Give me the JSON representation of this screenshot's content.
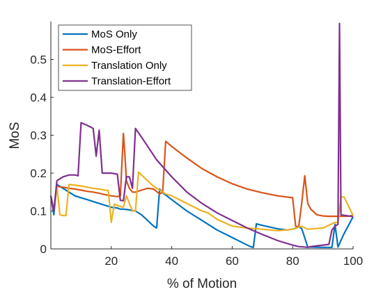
{
  "chart_data": {
    "type": "line",
    "xlabel": "% of Motion",
    "ylabel": "MoS",
    "xlim": [
      0,
      100
    ],
    "ylim": [
      0,
      0.6
    ],
    "xticks": [
      20,
      40,
      60,
      80,
      100
    ],
    "yticks": [
      0,
      0.1,
      0.2,
      0.3,
      0.4,
      0.5
    ],
    "xtick_labels": [
      "20",
      "40",
      "60",
      "80",
      "100"
    ],
    "ytick_labels": [
      "0",
      "0.1",
      "0.2",
      "0.3",
      "0.4",
      "0.5"
    ],
    "grid": false,
    "legend_position": "top-left",
    "series": [
      {
        "name": "MoS Only",
        "color": "#0072BD",
        "x": [
          0,
          1,
          2,
          4,
          6,
          8,
          10,
          12,
          14,
          16,
          18,
          20,
          22,
          23,
          24,
          26,
          28,
          30,
          32,
          34,
          35,
          36,
          37,
          40,
          45,
          50,
          55,
          60,
          63,
          66,
          67,
          68,
          70,
          75,
          78,
          80,
          82,
          83,
          85,
          90,
          93,
          94,
          95,
          97,
          99,
          100
        ],
        "y": [
          0.14,
          0.09,
          0.17,
          0.16,
          0.15,
          0.14,
          0.135,
          0.13,
          0.125,
          0.12,
          0.115,
          0.11,
          0.108,
          0.105,
          0.105,
          0.103,
          0.1,
          0.09,
          0.075,
          0.06,
          0.055,
          0.158,
          0.148,
          0.13,
          0.1,
          0.075,
          0.05,
          0.03,
          0.018,
          0.006,
          0.004,
          0.066,
          0.062,
          0.053,
          0.05,
          0.052,
          0.058,
          0.054,
          0.005,
          0.004,
          0.004,
          0.065,
          0.005,
          0.04,
          0.07,
          0.085
        ]
      },
      {
        "name": "MoS-Effort",
        "color": "#D95319",
        "x": [
          0,
          1,
          2,
          4,
          6,
          8,
          10,
          12,
          14,
          16,
          18,
          20,
          22,
          23,
          24,
          24.5,
          25,
          26,
          27,
          28,
          30,
          32,
          34,
          36,
          37,
          38,
          40,
          45,
          50,
          55,
          60,
          65,
          70,
          75,
          80,
          81,
          82,
          83,
          84,
          85,
          86,
          88,
          90,
          92,
          94,
          96,
          98,
          100
        ],
        "y": [
          0.14,
          0.1,
          0.165,
          0.163,
          0.16,
          0.158,
          0.155,
          0.152,
          0.15,
          0.147,
          0.143,
          0.14,
          0.138,
          0.14,
          0.305,
          0.25,
          0.18,
          0.16,
          0.15,
          0.15,
          0.155,
          0.16,
          0.158,
          0.145,
          0.15,
          0.284,
          0.27,
          0.24,
          0.212,
          0.19,
          0.172,
          0.158,
          0.148,
          0.14,
          0.135,
          0.06,
          0.058,
          0.12,
          0.193,
          0.12,
          0.105,
          0.09,
          0.087,
          0.086,
          0.086,
          0.086,
          0.086,
          0.088
        ]
      },
      {
        "name": "Translation Only",
        "color": "#EDB120",
        "x": [
          0,
          1,
          2,
          3,
          4,
          5,
          6,
          8,
          10,
          12,
          14,
          16,
          18,
          19,
          20,
          21,
          22,
          23,
          24,
          25,
          26,
          27,
          28,
          29,
          30,
          32,
          34,
          36,
          38,
          40,
          45,
          50,
          52,
          55,
          60,
          65,
          70,
          75,
          78,
          80,
          82,
          83,
          85,
          90,
          94,
          95,
          96,
          97,
          100
        ],
        "y": [
          0.14,
          0.1,
          0.165,
          0.09,
          0.088,
          0.088,
          0.17,
          0.168,
          0.166,
          0.163,
          0.16,
          0.158,
          0.155,
          0.154,
          0.07,
          0.118,
          0.115,
          0.112,
          0.11,
          0.14,
          0.12,
          0.1,
          0.1,
          0.203,
          0.195,
          0.18,
          0.165,
          0.155,
          0.145,
          0.14,
          0.12,
          0.1,
          0.095,
          0.078,
          0.06,
          0.055,
          0.052,
          0.048,
          0.05,
          0.052,
          0.057,
          0.06,
          0.052,
          0.055,
          0.07,
          0.07,
          0.137,
          0.137,
          0.088
        ]
      },
      {
        "name": "Translation-Effort",
        "color": "#7E2F8E",
        "x": [
          0,
          1,
          2,
          4,
          6,
          8,
          9,
          10,
          12,
          14,
          15,
          16,
          17,
          18,
          20,
          22,
          23,
          24,
          25,
          26,
          27,
          28,
          30,
          35,
          40,
          45,
          50,
          55,
          60,
          65,
          70,
          75,
          80,
          82,
          84,
          85,
          86,
          88,
          90,
          92,
          93,
          94,
          95,
          95.5,
          96,
          100
        ],
        "y": [
          0.14,
          0.1,
          0.18,
          0.19,
          0.195,
          0.195,
          0.193,
          0.333,
          0.326,
          0.318,
          0.245,
          0.313,
          0.2,
          0.2,
          0.2,
          0.197,
          0.128,
          0.127,
          0.19,
          0.19,
          0.16,
          0.318,
          0.295,
          0.235,
          0.19,
          0.15,
          0.12,
          0.095,
          0.075,
          0.055,
          0.038,
          0.022,
          0.01,
          0.006,
          0.005,
          0.004,
          0.006,
          0.008,
          0.01,
          0.012,
          0.05,
          0.06,
          0.065,
          0.595,
          0.09,
          0.085
        ]
      }
    ]
  }
}
